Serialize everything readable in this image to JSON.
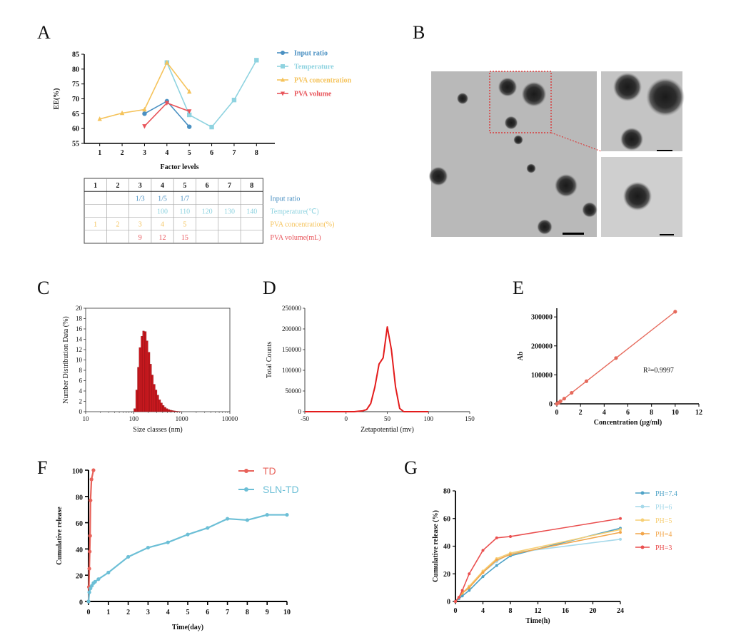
{
  "panels": {
    "A": "A",
    "B": "B",
    "C": "C",
    "D": "D",
    "E": "E",
    "F": "F",
    "G": "G"
  },
  "colors": {
    "input_ratio": "#4a90c2",
    "temperature": "#8fd3e0",
    "pva_conc": "#f5c35b",
    "pva_vol": "#e8545a",
    "hist": "#c8181e",
    "zeta": "#e31b1b",
    "lineE": "#e66a5c",
    "TD": "#e8625a",
    "SLN": "#6cbfd6",
    "ph74": "#4fa3c7",
    "ph6": "#a6d9ea",
    "ph5": "#f7cf75",
    "ph4": "#f2a54a",
    "ph3": "#ea4f4f"
  },
  "tem": {
    "scale_bar": "",
    "description_free": true
  },
  "chart_data": [
    {
      "id": "A",
      "type": "line",
      "title": "",
      "xlabel": "Factor levels",
      "ylabel": "EE(%)",
      "xlim": [
        0.5,
        8.5
      ],
      "ylim": [
        55,
        85
      ],
      "xticks": [
        "1",
        "2",
        "3",
        "4",
        "5",
        "6",
        "7",
        "8"
      ],
      "yticks": [
        "55",
        "60",
        "65",
        "70",
        "75",
        "80",
        "85"
      ],
      "series": [
        {
          "name": "Input ratio",
          "colorKey": "input_ratio",
          "marker": "circle",
          "x": [
            3,
            4,
            5
          ],
          "y": [
            65,
            69.2,
            60.6
          ]
        },
        {
          "name": "Temperature",
          "colorKey": "temperature",
          "marker": "square",
          "x": [
            4,
            5,
            6,
            7,
            8
          ],
          "y": [
            82.2,
            64.6,
            60.5,
            69.6,
            83
          ]
        },
        {
          "name": "PVA concentration",
          "colorKey": "pva_conc",
          "marker": "triangle-up",
          "x": [
            1,
            2,
            3,
            4,
            5
          ],
          "y": [
            63.2,
            65.2,
            66.4,
            82.2,
            72.4
          ]
        },
        {
          "name": "PVA volume",
          "colorKey": "pva_vol",
          "marker": "triangle-down",
          "x": [
            3,
            4,
            5
          ],
          "y": [
            60.8,
            68.6,
            65.8
          ]
        }
      ],
      "table": {
        "header": [
          "1",
          "2",
          "3",
          "4",
          "5",
          "6",
          "7",
          "8"
        ],
        "rows": [
          {
            "colorKey": "input_ratio",
            "cells": [
              "",
              "",
              "1/3",
              "1/5",
              "1/7",
              "",
              "",
              ""
            ],
            "label": "Input ratio"
          },
          {
            "colorKey": "temperature",
            "cells": [
              "",
              "",
              "",
              "100",
              "110",
              "120",
              "130",
              "140"
            ],
            "label": "Temperature(℃)"
          },
          {
            "colorKey": "pva_conc",
            "cells": [
              "1",
              "2",
              "3",
              "4",
              "5",
              "",
              "",
              ""
            ],
            "label": "PVA concentration(%)"
          },
          {
            "colorKey": "pva_vol",
            "cells": [
              "",
              "",
              "9",
              "12",
              "15",
              "",
              "",
              ""
            ],
            "label": "PVA volume(mL)"
          }
        ]
      }
    },
    {
      "id": "C",
      "type": "bar",
      "xlabel": "Size classes (nm)",
      "ylabel": "Number Distribution Data (%)",
      "xscale": "log",
      "xlim": [
        10,
        10000
      ],
      "ylim": [
        0,
        20
      ],
      "xticks": [
        "10",
        "100",
        "1000",
        "10000"
      ],
      "yticks": [
        "0",
        "2",
        "4",
        "6",
        "8",
        "10",
        "12",
        "14",
        "16",
        "18",
        "20"
      ],
      "bins": [
        {
          "x": 105,
          "y": 0.6
        },
        {
          "x": 115,
          "y": 4.2
        },
        {
          "x": 125,
          "y": 8.6
        },
        {
          "x": 135,
          "y": 12.4
        },
        {
          "x": 148,
          "y": 14.6
        },
        {
          "x": 160,
          "y": 15.6
        },
        {
          "x": 175,
          "y": 15.5
        },
        {
          "x": 190,
          "y": 13.7
        },
        {
          "x": 208,
          "y": 11.5
        },
        {
          "x": 225,
          "y": 9.2
        },
        {
          "x": 245,
          "y": 7.1
        },
        {
          "x": 268,
          "y": 5.3
        },
        {
          "x": 292,
          "y": 4.2
        },
        {
          "x": 318,
          "y": 3.2
        },
        {
          "x": 347,
          "y": 2.3
        },
        {
          "x": 378,
          "y": 1.7
        },
        {
          "x": 412,
          "y": 1.2
        },
        {
          "x": 450,
          "y": 0.85
        },
        {
          "x": 490,
          "y": 0.6
        },
        {
          "x": 535,
          "y": 0.42
        },
        {
          "x": 585,
          "y": 0.3
        },
        {
          "x": 640,
          "y": 0.22
        },
        {
          "x": 700,
          "y": 0.15
        },
        {
          "x": 765,
          "y": 0.1
        },
        {
          "x": 835,
          "y": 0.07
        },
        {
          "x": 910,
          "y": 0.05
        }
      ]
    },
    {
      "id": "D",
      "type": "line",
      "xlabel": "Zetapotential (mv)",
      "ylabel": "Total Counts",
      "xlim": [
        -50,
        150
      ],
      "ylim": [
        0,
        250000
      ],
      "xticks": [
        "-50",
        "0",
        "50",
        "100",
        "150"
      ],
      "yticks": [
        "0",
        "50000",
        "100000",
        "150000",
        "200000",
        "250000"
      ],
      "x": [
        -50,
        0,
        10,
        15,
        20,
        25,
        30,
        35,
        40,
        45,
        50,
        55,
        60,
        65,
        70,
        80,
        100
      ],
      "y": [
        0,
        0,
        0,
        1000,
        2000,
        5000,
        20000,
        60000,
        115000,
        130000,
        205000,
        150000,
        60000,
        8000,
        0,
        0,
        0
      ]
    },
    {
      "id": "E",
      "type": "line",
      "xlabel": "Concentration (μg/ml)",
      "ylabel": "Ab",
      "xlim": [
        0,
        12
      ],
      "ylim": [
        0,
        330000
      ],
      "xticks": [
        "0",
        "2",
        "4",
        "6",
        "8",
        "10",
        "12"
      ],
      "yticks": [
        "0",
        "100000",
        "200000",
        "300000"
      ],
      "annotation": "R²=0.9997",
      "x": [
        0,
        0.156,
        0.3125,
        0.625,
        1.25,
        2.5,
        5,
        10
      ],
      "y": [
        0,
        4000,
        9000,
        18000,
        38000,
        78000,
        158000,
        318000
      ]
    },
    {
      "id": "F",
      "type": "line",
      "xlabel": "Time(day)",
      "ylabel": "Cumulative release",
      "xlim": [
        0,
        10
      ],
      "ylim": [
        0,
        100
      ],
      "xticks": [
        "0",
        "1",
        "2",
        "3",
        "4",
        "5",
        "6",
        "7",
        "8",
        "9",
        "10"
      ],
      "yticks": [
        "0",
        "20",
        "40",
        "60",
        "80",
        "100"
      ],
      "series": [
        {
          "name": "TD",
          "colorKey": "TD",
          "x": [
            0,
            0.02,
            0.04,
            0.06,
            0.08,
            0.1,
            0.15,
            0.25
          ],
          "y": [
            0,
            11,
            25,
            38,
            50,
            77,
            93,
            100
          ]
        },
        {
          "name": "SLN-TD",
          "colorKey": "SLN",
          "x": [
            0,
            0.04,
            0.1,
            0.17,
            0.25,
            0.33,
            0.5,
            1,
            2,
            3,
            4,
            5,
            6,
            7,
            8,
            9,
            10
          ],
          "y": [
            0,
            7,
            10,
            12,
            14,
            15,
            17,
            22,
            34,
            41,
            45,
            51,
            56,
            63,
            62,
            66,
            66
          ]
        }
      ]
    },
    {
      "id": "G",
      "type": "line",
      "xlabel": "Time(h)",
      "ylabel": "Cumulative release (%)",
      "xlim": [
        0,
        24
      ],
      "ylim": [
        0,
        80
      ],
      "xticks": [
        "0",
        "4",
        "8",
        "12",
        "16",
        "20",
        "24"
      ],
      "yticks": [
        "0",
        "20",
        "40",
        "60",
        "80"
      ],
      "series": [
        {
          "name": "PH=7.4",
          "colorKey": "ph74",
          "x": [
            0,
            0.5,
            1,
            2,
            4,
            6,
            8,
            24
          ],
          "y": [
            0,
            2,
            4,
            8,
            18,
            26,
            33,
            53
          ]
        },
        {
          "name": "PH=6",
          "colorKey": "ph6",
          "x": [
            0,
            0.5,
            1,
            2,
            4,
            6,
            8,
            24
          ],
          "y": [
            0,
            3,
            6,
            11,
            21,
            29,
            35,
            45
          ]
        },
        {
          "name": "PH=5",
          "colorKey": "ph5",
          "x": [
            0,
            0.5,
            1,
            2,
            4,
            6,
            8,
            24
          ],
          "y": [
            0,
            3,
            6,
            11,
            22,
            31,
            35,
            52
          ]
        },
        {
          "name": "PH=4",
          "colorKey": "ph4",
          "x": [
            0,
            0.5,
            1,
            2,
            4,
            6,
            8,
            24
          ],
          "y": [
            0,
            3,
            6,
            10,
            21,
            30,
            34,
            50
          ]
        },
        {
          "name": "PH=3",
          "colorKey": "ph3",
          "x": [
            0,
            0.5,
            1,
            2,
            4,
            6,
            8,
            24
          ],
          "y": [
            0,
            3,
            8,
            20,
            37,
            46,
            47,
            60
          ]
        }
      ]
    }
  ]
}
